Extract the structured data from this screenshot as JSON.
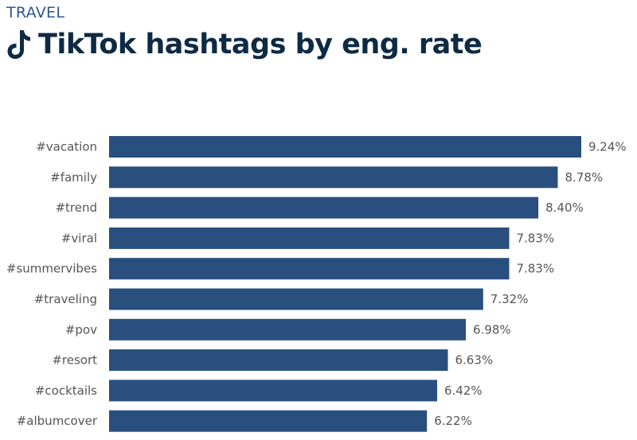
{
  "header": {
    "kicker": "TRAVEL",
    "title": "TikTok hashtags by eng. rate",
    "icon": "tiktok-icon"
  },
  "colors": {
    "bar": "#284f7e",
    "title": "#0e2a44",
    "kicker": "#2d5a88",
    "label": "#555555"
  },
  "chart_data": {
    "type": "bar",
    "orientation": "horizontal",
    "categories": [
      "#vacation",
      "#family",
      "#trend",
      "#viral",
      "#summervibes",
      "#traveling",
      "#pov",
      "#resort",
      "#cocktails",
      "#albumcover"
    ],
    "values": [
      9.24,
      8.78,
      8.4,
      7.83,
      7.83,
      7.32,
      6.98,
      6.63,
      6.42,
      6.22
    ],
    "value_labels": [
      "9.24%",
      "8.78%",
      "8.40%",
      "7.83%",
      "7.83%",
      "7.32%",
      "6.98%",
      "6.63%",
      "6.42%",
      "6.22%"
    ],
    "title": "TikTok hashtags by eng. rate",
    "xlabel": "",
    "ylabel": "",
    "xlim": [
      0,
      9.24
    ],
    "grid": false,
    "legend": "none"
  }
}
